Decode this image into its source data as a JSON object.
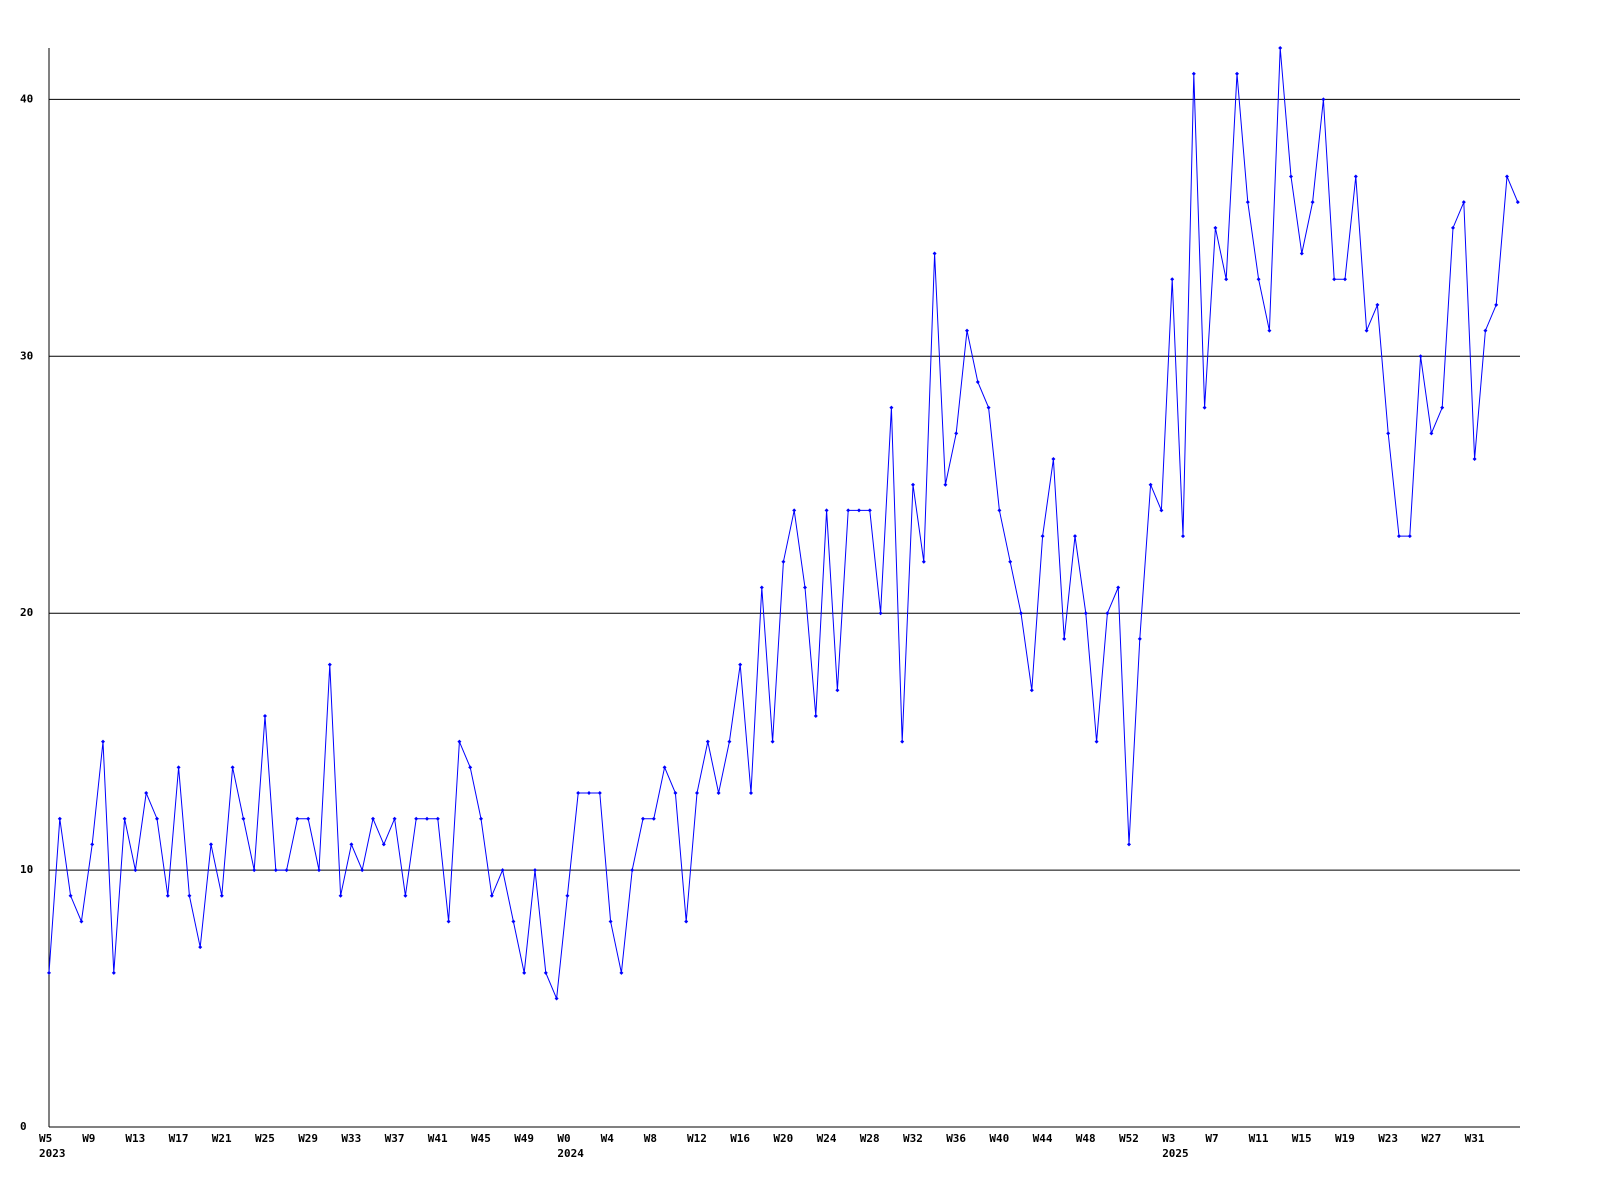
{
  "chart_data": {
    "type": "line",
    "categories": [
      "W5",
      null,
      null,
      null,
      "W9",
      null,
      null,
      null,
      "W13",
      null,
      null,
      null,
      "W17",
      null,
      null,
      null,
      "W21",
      null,
      null,
      null,
      "W25",
      null,
      null,
      null,
      "W29",
      null,
      null,
      null,
      "W33",
      null,
      null,
      null,
      "W37",
      null,
      null,
      null,
      "W41",
      null,
      null,
      null,
      "W45",
      null,
      null,
      null,
      "W49",
      null,
      null,
      null,
      "W0",
      null,
      null,
      null,
      "W4",
      null,
      null,
      null,
      "W8",
      null,
      null,
      null,
      "W12",
      null,
      null,
      null,
      "W16",
      null,
      null,
      null,
      "W20",
      null,
      null,
      null,
      "W24",
      null,
      null,
      null,
      "W28",
      null,
      null,
      null,
      "W32",
      null,
      null,
      null,
      "W36",
      null,
      null,
      null,
      "W40",
      null,
      null,
      null,
      "W44",
      null,
      null,
      null,
      "W48",
      null,
      null,
      null,
      "W52",
      null,
      null,
      null,
      "W3",
      null,
      null,
      null,
      "W7",
      null,
      null,
      null,
      "W11",
      null,
      null,
      null,
      "W15",
      null,
      null,
      null,
      "W19",
      null,
      null,
      null,
      "W23",
      null,
      null,
      null,
      "W27",
      null,
      null,
      null,
      "W31",
      null,
      null,
      null,
      null
    ],
    "years": [
      "2023",
      null,
      null,
      null,
      null,
      null,
      null,
      null,
      null,
      null,
      null,
      null,
      null,
      null,
      null,
      null,
      null,
      null,
      null,
      null,
      null,
      null,
      null,
      null,
      null,
      null,
      null,
      null,
      null,
      null,
      null,
      null,
      null,
      null,
      null,
      null,
      null,
      null,
      null,
      null,
      null,
      null,
      null,
      null,
      null,
      null,
      null,
      null,
      "2024",
      null,
      null,
      null,
      null,
      null,
      null,
      null,
      null,
      null,
      null,
      null,
      null,
      null,
      null,
      null,
      null,
      null,
      null,
      null,
      null,
      null,
      null,
      null,
      null,
      null,
      null,
      null,
      null,
      null,
      null,
      null,
      null,
      null,
      null,
      null,
      null,
      null,
      null,
      null,
      null,
      null,
      null,
      null,
      null,
      null,
      null,
      null,
      null,
      null,
      null,
      null,
      null,
      null,
      null,
      null,
      "2025",
      null,
      null,
      null,
      null,
      null,
      null,
      null,
      null,
      null,
      null,
      null,
      null,
      null,
      null,
      null,
      null,
      null,
      null,
      null,
      null,
      null,
      null,
      null,
      null,
      null,
      null,
      null,
      null,
      null,
      null,
      null,
      null
    ],
    "series": [
      {
        "color": "#0000ff",
        "values": [
          6,
          12,
          9,
          8,
          11,
          15,
          6,
          12,
          10,
          13,
          12,
          9,
          14,
          9,
          7,
          11,
          9,
          14,
          12,
          10,
          16,
          10,
          10,
          12,
          12,
          10,
          18,
          9,
          11,
          10,
          12,
          11,
          12,
          9,
          12,
          12,
          12,
          8,
          15,
          14,
          12,
          9,
          10,
          8,
          6,
          10,
          6,
          5,
          9,
          13,
          13,
          13,
          8,
          6,
          10,
          12,
          12,
          14,
          13,
          8,
          13,
          15,
          13,
          15,
          18,
          13,
          21,
          15,
          22,
          24,
          21,
          16,
          24,
          17,
          24,
          24,
          24,
          20,
          28,
          15,
          25,
          22,
          34,
          25,
          27,
          31,
          29,
          28,
          24,
          22,
          20,
          17,
          23,
          26,
          19,
          23,
          20,
          15,
          20,
          21,
          11,
          19,
          25,
          24,
          33,
          23,
          41,
          28,
          35,
          33,
          41,
          36,
          33,
          31,
          42,
          37,
          34,
          36,
          40,
          33,
          33,
          37,
          31,
          32,
          27,
          23,
          23,
          30,
          27,
          28,
          35,
          36,
          26,
          31,
          32,
          37,
          36
        ]
      }
    ],
    "ylim": [
      0,
      42
    ],
    "yticks": [
      0,
      10,
      20,
      30,
      40
    ],
    "grid": true
  }
}
